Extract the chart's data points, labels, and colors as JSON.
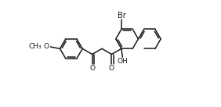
{
  "bg": "#ffffff",
  "lc": "#1a1a1a",
  "lw": 1.1,
  "db": 0.012,
  "fs": 6.5,
  "s": 0.093,
  "xlim": [
    0.0,
    1.0
  ],
  "ylim": [
    0.08,
    0.95
  ]
}
